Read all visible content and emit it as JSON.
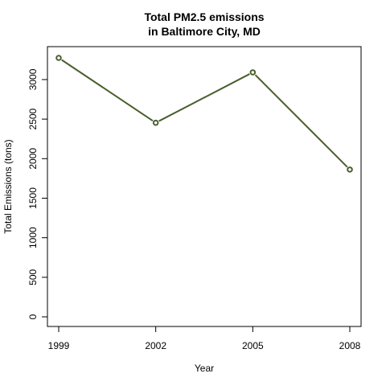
{
  "chart_data": {
    "type": "line",
    "title_lines": [
      "Total PM2.5 emissions",
      "in Baltimore City, MD"
    ],
    "xlabel": "Year",
    "ylabel": "Total Emissions (tons)",
    "x": [
      1999,
      2002,
      2005,
      2008
    ],
    "series": [
      {
        "values": [
          3274,
          2454,
          3091,
          1862
        ],
        "color": "#4a5e2f"
      }
    ],
    "xlim": [
      1999,
      2008
    ],
    "ylim": [
      0,
      3274
    ],
    "x_ticks": [
      "1999",
      "2002",
      "2005",
      "2008"
    ],
    "y_ticks": [
      "0",
      "500",
      "1000",
      "1500",
      "2000",
      "2500",
      "3000"
    ],
    "grid": false,
    "legend": "none"
  }
}
